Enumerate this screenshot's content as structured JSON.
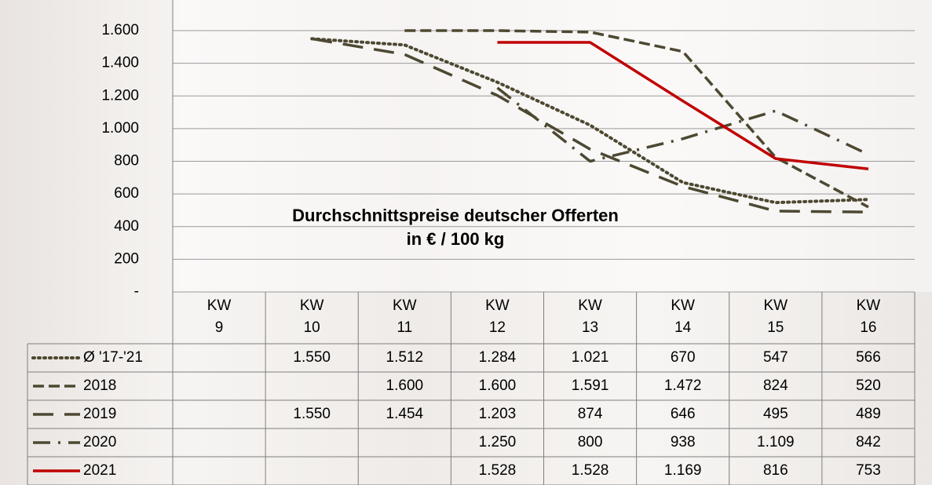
{
  "chart_data": {
    "type": "line",
    "title": "Durchschnittspreise deutscher Offerten",
    "subtitle": "in € / 100 kg",
    "categories": [
      "KW 9",
      "KW 10",
      "KW 11",
      "KW 12",
      "KW 13",
      "KW 14",
      "KW 15",
      "KW 16"
    ],
    "ylim": [
      0,
      1600
    ],
    "yticks": [
      {
        "value": 0,
        "label": "-"
      },
      200,
      400,
      600,
      800,
      {
        "value": 1000,
        "label": "1.000"
      },
      {
        "value": 1200,
        "label": "1.200"
      },
      {
        "value": 1400,
        "label": "1.400"
      },
      {
        "value": 1600,
        "label": "1.600"
      }
    ],
    "grid": true,
    "series": [
      {
        "name": "Ø '17-'21",
        "color": "#4d4831",
        "dash": "dotted",
        "values": [
          null,
          1550,
          1512,
          1284,
          1021,
          670,
          547,
          566
        ],
        "value_labels": [
          null,
          "1.550",
          "1.512",
          "1.284",
          "1.021",
          "670",
          "547",
          "566"
        ]
      },
      {
        "name": "2018",
        "color": "#4d4831",
        "dash": "dashed",
        "values": [
          null,
          null,
          1600,
          1600,
          1591,
          1472,
          824,
          520
        ],
        "value_labels": [
          null,
          null,
          "1.600",
          "1.600",
          "1.591",
          "1.472",
          "824",
          "520"
        ]
      },
      {
        "name": "2019",
        "color": "#4d4831",
        "dash": "long-dash",
        "values": [
          null,
          1550,
          1454,
          1203,
          874,
          646,
          495,
          489
        ],
        "value_labels": [
          null,
          "1.550",
          "1.454",
          "1.203",
          "874",
          "646",
          "495",
          "489"
        ]
      },
      {
        "name": "2020",
        "color": "#4d4831",
        "dash": "dash-dot",
        "values": [
          null,
          null,
          null,
          1250,
          800,
          938,
          1109,
          842
        ],
        "value_labels": [
          null,
          null,
          null,
          "1.250",
          "800",
          "938",
          "1.109",
          "842"
        ]
      },
      {
        "name": "2021",
        "color": "#c00000",
        "dash": "solid",
        "values": [
          null,
          null,
          null,
          1528,
          1528,
          1169,
          816,
          753
        ],
        "value_labels": [
          null,
          null,
          null,
          "1.528",
          "1.528",
          "1.169",
          "816",
          "753"
        ]
      }
    ]
  }
}
